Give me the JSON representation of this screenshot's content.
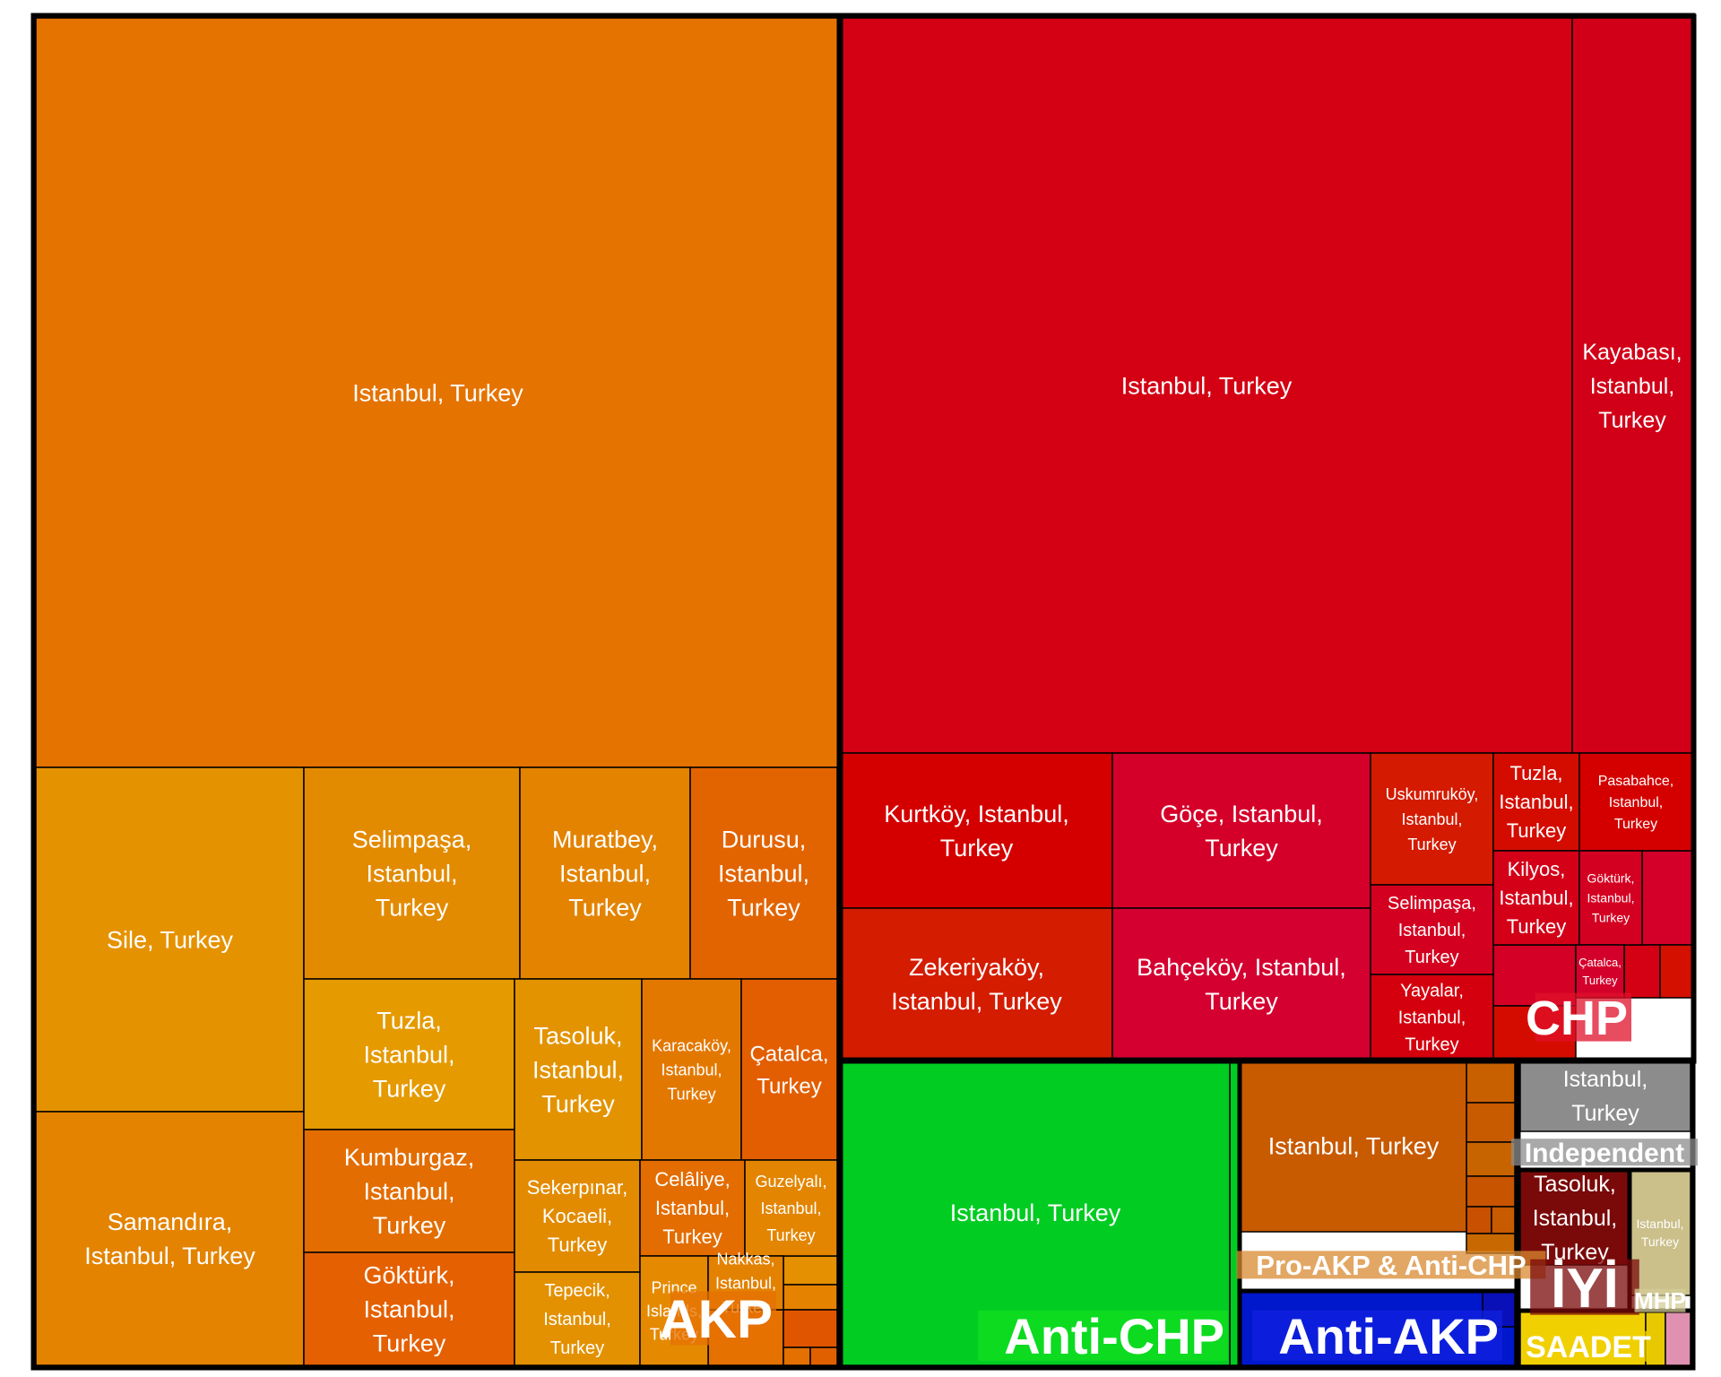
{
  "chart_data": {
    "type": "treemap",
    "colors": {
      "AKP": "#e57300",
      "CHP": "#d40014",
      "Anti-CHP": "#00cc22",
      "Pro-AKP & Anti-CHP": "#c85a00",
      "Anti-AKP": "#0018cc",
      "Independent": "#8c8c8c",
      "IYI": "#7a0a0a",
      "MHP": "#cbbf8a",
      "SAADET": "#f0d000",
      "other": "#e090b0"
    },
    "groups": [
      {
        "name": "AKP",
        "color": "#e57300",
        "items": [
          {
            "label": "Istanbul, Turkey",
            "color": "#e57300"
          },
          {
            "label": "Sile, Turkey",
            "color": "#e59200"
          },
          {
            "label": "Samandıra, Istanbul, Turkey",
            "color": "#e38300"
          },
          {
            "label": "Selimpaşa, Istanbul, Turkey",
            "color": "#e38b00"
          },
          {
            "label": "Muratbey, Istanbul, Turkey",
            "color": "#e38300"
          },
          {
            "label": "Durusu, Istanbul, Turkey",
            "color": "#e26400"
          },
          {
            "label": "Tuzla, Istanbul, Turkey",
            "color": "#e59a00"
          },
          {
            "label": "Kumburgaz, Istanbul, Turkey",
            "color": "#e36d00"
          },
          {
            "label": "Göktürk, Istanbul, Turkey",
            "color": "#e56000"
          },
          {
            "label": "Tasoluk, Istanbul, Turkey",
            "color": "#e39300"
          },
          {
            "label": "Karacaköy, Istanbul, Turkey",
            "color": "#e37800"
          },
          {
            "label": "Çatalca, Turkey",
            "color": "#e35e00"
          },
          {
            "label": "Sekerpınar, Kocaeli, Turkey",
            "color": "#e38b00"
          },
          {
            "label": "Celâliye, Istanbul, Turkey",
            "color": "#e36d00"
          },
          {
            "label": "Guzelyalı, Istanbul, Turkey",
            "color": "#e38500"
          },
          {
            "label": "Tepecik, Istanbul, Turkey",
            "color": "#e39100"
          },
          {
            "label": "Prince Islands, Turkey",
            "color": "#e58a00"
          },
          {
            "label": "Nakkas, Istanbul, Turkey",
            "color": "#e38100"
          }
        ]
      },
      {
        "name": "CHP",
        "color": "#d40014",
        "items": [
          {
            "label": "Istanbul, Turkey",
            "color": "#d40014"
          },
          {
            "label": "Kayabası, Istanbul, Turkey",
            "color": "#d10018"
          },
          {
            "label": "Kurtköy, Istanbul, Turkey",
            "color": "#d40000"
          },
          {
            "label": "Göçe, Istanbul, Turkey",
            "color": "#d4002a"
          },
          {
            "label": "Zekeriyaköy, Istanbul, Turkey",
            "color": "#d41c00"
          },
          {
            "label": "Bahçeköy, Istanbul, Turkey",
            "color": "#d40030"
          },
          {
            "label": "Uskumruköy, Istanbul, Turkey",
            "color": "#d41a00"
          },
          {
            "label": "Selimpaşa, Istanbul, Turkey",
            "color": "#d40020"
          },
          {
            "label": "Yayalar, Istanbul, Turkey",
            "color": "#d4000e"
          },
          {
            "label": "Tuzla, Istanbul, Turkey",
            "color": "#d40c00"
          },
          {
            "label": "Pasabahce, Istanbul, Turkey",
            "color": "#d40000"
          },
          {
            "label": "Kilyos, Istanbul, Turkey",
            "color": "#d40018"
          },
          {
            "label": "Göktürk, Istanbul, Turkey",
            "color": "#d40022"
          },
          {
            "label": "Çatalca, Turkey",
            "color": "#d4002c"
          }
        ]
      },
      {
        "name": "Anti-CHP",
        "color": "#00cc22",
        "items": [
          {
            "label": "Istanbul, Turkey",
            "color": "#00cc22"
          }
        ]
      },
      {
        "name": "Pro-AKP & Anti-CHP",
        "color": "#c85a00",
        "items": [
          {
            "label": "Istanbul, Turkey",
            "color": "#c85a00"
          }
        ]
      },
      {
        "name": "Anti-AKP",
        "color": "#0018cc",
        "items": []
      },
      {
        "name": "Independent",
        "color": "#8c8c8c",
        "items": [
          {
            "label": "Istanbul, Turkey",
            "color": "#8c8c8c"
          }
        ]
      },
      {
        "name": "İYİ",
        "color": "#7a0a0a",
        "items": [
          {
            "label": "Tasoluk, Istanbul, Turkey",
            "color": "#7a0a0a"
          }
        ]
      },
      {
        "name": "MHP",
        "color": "#cbbf8a",
        "items": [
          {
            "label": "Istanbul, Turkey",
            "color": "#cbbf8a"
          }
        ]
      },
      {
        "name": "SAADET",
        "color": "#f0d000",
        "items": []
      }
    ]
  }
}
